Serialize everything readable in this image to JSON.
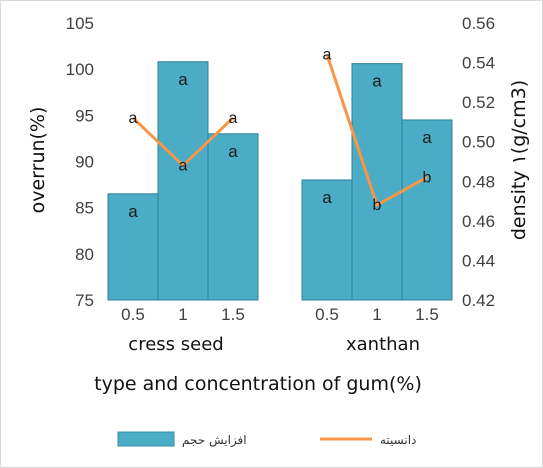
{
  "chart_data": {
    "type": "bar",
    "xlabel": "type and concentration of gum(%)",
    "ylabel": "overrun(%)",
    "y2label": "density ۱(g/cm3)",
    "ylim": [
      75,
      105
    ],
    "y2lim": [
      0.42,
      0.56
    ],
    "yticks": [
      75,
      80,
      85,
      90,
      95,
      100,
      105
    ],
    "y2ticks": [
      0.42,
      0.44,
      0.46,
      0.48,
      0.5,
      0.52,
      0.54,
      0.56
    ],
    "groups": [
      {
        "name": "cress seed",
        "categories": [
          "0.5",
          "1",
          "1.5"
        ]
      },
      {
        "name": "xanthan",
        "categories": [
          "0.5",
          "1",
          "1.5"
        ]
      }
    ],
    "series": [
      {
        "name": "افزایش حجم",
        "kind": "bar",
        "axis": "left",
        "color": "#4bacc6",
        "values": [
          86.5,
          100.8,
          93.0,
          88.0,
          100.6,
          94.5
        ],
        "letters": [
          "a",
          "a",
          "a",
          "a",
          "a",
          "a"
        ]
      },
      {
        "name": "دانسیته",
        "kind": "line",
        "axis": "right",
        "color": "#f79646",
        "values": [
          0.512,
          0.488,
          0.512,
          0.544,
          0.468,
          0.482
        ],
        "letters": [
          "a",
          "a",
          "a",
          "a",
          "b",
          "b"
        ]
      }
    ],
    "legend_position": "bottom",
    "grid": false
  }
}
